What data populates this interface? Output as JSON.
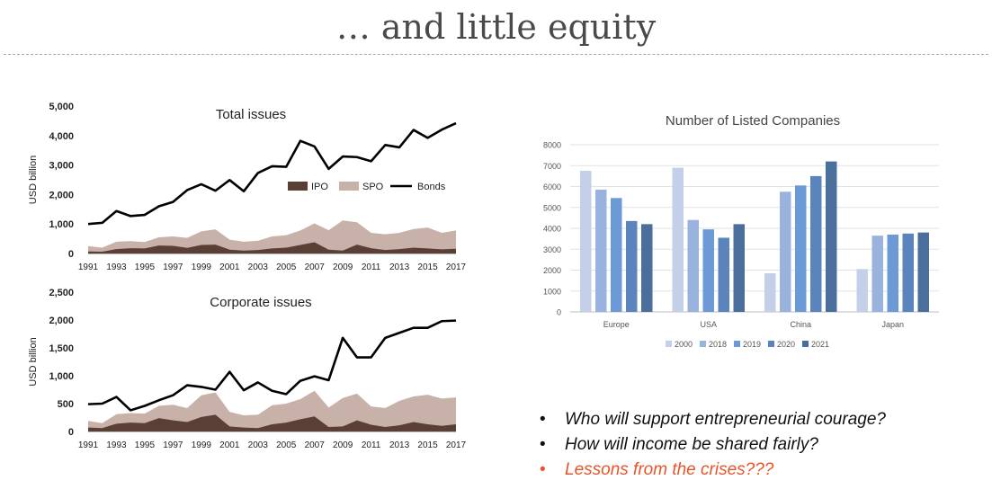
{
  "slide": {
    "title": "… and little equity",
    "bullets": [
      {
        "text": "Who will support entrepreneurial courage?",
        "color": "#111111"
      },
      {
        "text": "How will income be shared fairly?",
        "color": "#111111"
      },
      {
        "text": "Lessons from the crises???",
        "color": "#e8542a"
      }
    ]
  },
  "chart_data": [
    {
      "type": "area",
      "title": "Total issues",
      "ylabel": "USD billion",
      "ylim": [
        0,
        5000
      ],
      "yticks": [
        0,
        1000,
        2000,
        3000,
        4000,
        5000
      ],
      "ytick_labels": [
        "0",
        "1,000",
        "2,000",
        "3,000",
        "4,000",
        "5,000"
      ],
      "x": [
        1991,
        1992,
        1993,
        1994,
        1995,
        1996,
        1997,
        1998,
        1999,
        2000,
        2001,
        2002,
        2003,
        2004,
        2005,
        2006,
        2007,
        2008,
        2009,
        2010,
        2011,
        2012,
        2013,
        2014,
        2015,
        2016,
        2017
      ],
      "xtick_labels": [
        "1991",
        "1993",
        "1995",
        "1997",
        "1999",
        "2001",
        "2003",
        "2005",
        "2007",
        "2009",
        "2011",
        "2013",
        "2015",
        "2017"
      ],
      "legend": [
        "IPO",
        "SPO",
        "Bonds"
      ],
      "legend_position": "center-right",
      "series": [
        {
          "name": "IPO",
          "kind": "area",
          "color": "#5a3f36",
          "values": [
            70,
            60,
            150,
            180,
            170,
            270,
            260,
            190,
            290,
            300,
            130,
            100,
            120,
            170,
            200,
            290,
            380,
            130,
            100,
            300,
            180,
            120,
            150,
            200,
            170,
            140,
            160
          ]
        },
        {
          "name": "SPO",
          "kind": "area",
          "color": "#c7b1a8",
          "values": [
            250,
            200,
            400,
            420,
            390,
            550,
            580,
            530,
            750,
            820,
            470,
            400,
            430,
            580,
            620,
            780,
            1020,
            790,
            1120,
            1060,
            700,
            650,
            700,
            830,
            880,
            700,
            780
          ]
        },
        {
          "name": "Bonds",
          "kind": "line",
          "color": "#000000",
          "values": [
            1000,
            1040,
            1440,
            1270,
            1310,
            1600,
            1750,
            2150,
            2350,
            2130,
            2490,
            2110,
            2730,
            2960,
            2940,
            3820,
            3630,
            2870,
            3290,
            3270,
            3130,
            3680,
            3600,
            4190,
            3920,
            4200,
            4420
          ]
        }
      ]
    },
    {
      "type": "area",
      "title": "Corporate issues",
      "ylabel": "USD billion",
      "ylim": [
        0,
        2500
      ],
      "yticks": [
        0,
        500,
        1000,
        1500,
        2000,
        2500
      ],
      "ytick_labels": [
        "0",
        "500",
        "1,000",
        "1,500",
        "2,000",
        "2,500"
      ],
      "x": [
        1991,
        1992,
        1993,
        1994,
        1995,
        1996,
        1997,
        1998,
        1999,
        2000,
        2001,
        2002,
        2003,
        2004,
        2005,
        2006,
        2007,
        2008,
        2009,
        2010,
        2011,
        2012,
        2013,
        2014,
        2015,
        2016,
        2017
      ],
      "xtick_labels": [
        "1991",
        "1993",
        "1995",
        "1997",
        "1999",
        "2001",
        "2003",
        "2005",
        "2007",
        "2009",
        "2011",
        "2013",
        "2015",
        "2017"
      ],
      "series": [
        {
          "name": "IPO",
          "kind": "area",
          "color": "#5a3f36",
          "values": [
            70,
            60,
            140,
            160,
            150,
            240,
            200,
            170,
            260,
            300,
            90,
            70,
            60,
            130,
            160,
            220,
            270,
            80,
            90,
            200,
            120,
            80,
            110,
            170,
            130,
            100,
            130
          ]
        },
        {
          "name": "SPO",
          "kind": "area",
          "color": "#c7b1a8",
          "values": [
            190,
            150,
            310,
            330,
            320,
            460,
            480,
            420,
            650,
            700,
            350,
            290,
            300,
            470,
            500,
            580,
            730,
            430,
            600,
            680,
            450,
            420,
            550,
            630,
            660,
            590,
            610
          ]
        },
        {
          "name": "Bonds",
          "kind": "line",
          "color": "#000000",
          "values": [
            490,
            500,
            620,
            380,
            460,
            560,
            650,
            830,
            800,
            750,
            1070,
            740,
            880,
            730,
            670,
            910,
            990,
            920,
            1680,
            1330,
            1330,
            1680,
            1770,
            1860,
            1860,
            1980,
            1990
          ]
        }
      ]
    },
    {
      "type": "bar",
      "title": "Number of Listed Companies",
      "ylim": [
        0,
        8000
      ],
      "yticks": [
        0,
        1000,
        2000,
        3000,
        4000,
        5000,
        6000,
        7000,
        8000
      ],
      "ytick_labels": [
        "0",
        "1000",
        "2000",
        "3000",
        "4000",
        "5000",
        "6000",
        "7000",
        "8000"
      ],
      "categories": [
        "Europe",
        "USA",
        "China",
        "Japan"
      ],
      "legend_position": "bottom",
      "grid": true,
      "series": [
        {
          "name": "2000",
          "color": "#c3d0e8",
          "values": [
            6750,
            6900,
            1850,
            2050
          ]
        },
        {
          "name": "2018",
          "color": "#99b3de",
          "values": [
            5850,
            4400,
            5750,
            3650
          ]
        },
        {
          "name": "2019",
          "color": "#6b9ad6",
          "values": [
            5450,
            3950,
            6050,
            3700
          ]
        },
        {
          "name": "2020",
          "color": "#5b84bc",
          "values": [
            4350,
            3550,
            6500,
            3750
          ]
        },
        {
          "name": "2021",
          "color": "#4a6f9d",
          "values": [
            4200,
            4200,
            7200,
            3800
          ]
        }
      ]
    }
  ]
}
